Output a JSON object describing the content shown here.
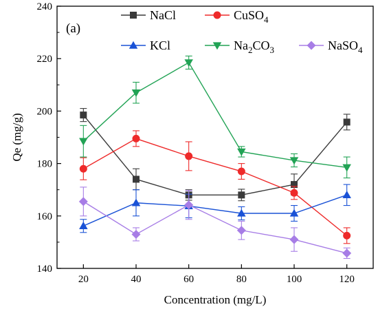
{
  "chart_data": {
    "type": "line",
    "panel_label": "(a)",
    "xlabel": "Concentration (mg/L)",
    "ylabel": "Qe (mg/g)",
    "x": [
      20,
      40,
      60,
      80,
      100,
      120
    ],
    "xlim": [
      10,
      130
    ],
    "ylim": [
      140,
      240
    ],
    "xticks": [
      20,
      40,
      60,
      80,
      100,
      120
    ],
    "yticks": [
      140,
      160,
      180,
      200,
      220,
      240
    ],
    "xtick_labels": [
      "20",
      "40",
      "60",
      "80",
      "100",
      "120"
    ],
    "ytick_labels": [
      "140",
      "160",
      "180",
      "200",
      "220",
      "240"
    ],
    "grid": false,
    "legend_position": "top",
    "series": [
      {
        "name": "NaCl",
        "legend_base": "NaCl",
        "legend_sub": [],
        "color": "#3a3a3a",
        "marker": "square",
        "values": [
          198.5,
          174,
          168,
          168,
          172,
          195.8
        ],
        "errors": [
          2.5,
          4,
          2,
          2.2,
          4,
          3
        ]
      },
      {
        "name": "CuSO4",
        "legend_base": "CuSO",
        "legend_sub": [
          "4"
        ],
        "color": "#ee2a2a",
        "marker": "circle",
        "values": [
          178,
          189.5,
          182.8,
          177,
          168.8,
          152.5
        ],
        "errors": [
          4.2,
          3,
          5.5,
          3,
          2.5,
          3
        ]
      },
      {
        "name": "KCl",
        "legend_base": "KCl",
        "legend_sub": [],
        "color": "#1a52d6",
        "marker": "triangle-up",
        "values": [
          156.2,
          165,
          163.8,
          161,
          161,
          168
        ],
        "errors": [
          2.5,
          5,
          4.5,
          2.5,
          3,
          4
        ]
      },
      {
        "name": "Na2CO3",
        "legend_base": "Na",
        "legend_sub": [
          "2",
          "CO",
          "3"
        ],
        "color": "#22a355",
        "marker": "triangle-down",
        "values": [
          188.5,
          207,
          218.5,
          184.5,
          181.2,
          178.5
        ],
        "errors": [
          6,
          4,
          2.5,
          2,
          2.5,
          4
        ]
      },
      {
        "name": "NaSO4",
        "legend_base": "NaSO",
        "legend_sub": [
          "4"
        ],
        "color": "#a77de6",
        "marker": "diamond",
        "values": [
          165.5,
          153,
          164.2,
          154.5,
          151,
          145.8
        ],
        "errors": [
          5.5,
          2.5,
          5.5,
          3.5,
          4.5,
          2
        ]
      }
    ]
  }
}
